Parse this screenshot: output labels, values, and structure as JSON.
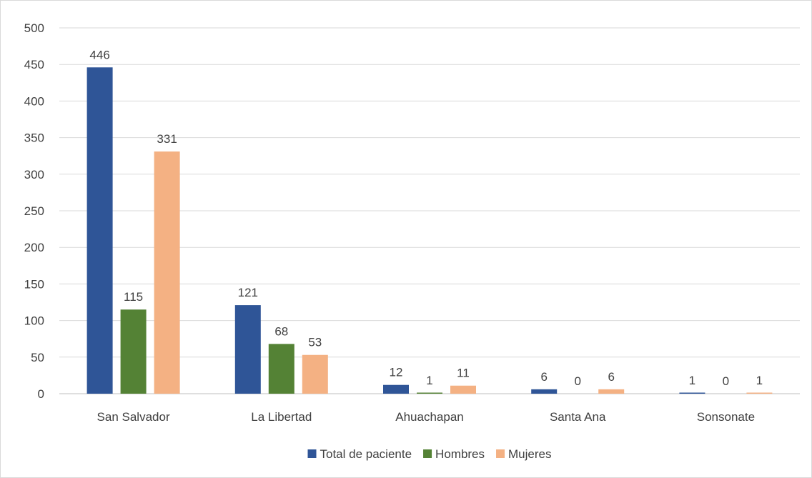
{
  "chart_data": {
    "type": "bar",
    "title": "",
    "xlabel": "",
    "ylabel": "",
    "categories": [
      "San Salvador",
      "La Libertad",
      "Ahuachapan",
      "Santa Ana",
      "Sonsonate"
    ],
    "series": [
      {
        "name": "Total de paciente",
        "color": "#2f5597",
        "values": [
          446,
          121,
          12,
          6,
          1
        ]
      },
      {
        "name": "Hombres",
        "color": "#548235",
        "values": [
          115,
          68,
          1,
          0,
          0
        ]
      },
      {
        "name": "Mujeres",
        "color": "#f4b183",
        "values": [
          331,
          53,
          11,
          6,
          1
        ]
      }
    ],
    "ylim": [
      0,
      500
    ],
    "yticks": [
      0,
      50,
      100,
      150,
      200,
      250,
      300,
      350,
      400,
      450,
      500
    ],
    "grid": true,
    "data_labels": true,
    "legend_position": "bottom"
  }
}
